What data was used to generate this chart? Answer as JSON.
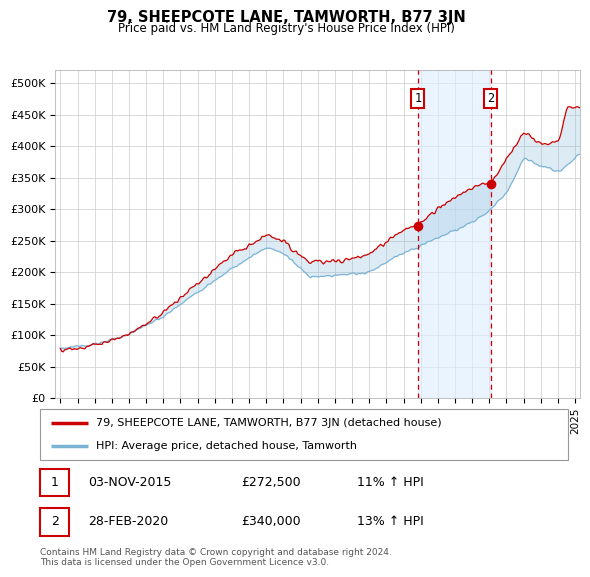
{
  "title": "79, SHEEPCOTE LANE, TAMWORTH, B77 3JN",
  "subtitle": "Price paid vs. HM Land Registry's House Price Index (HPI)",
  "legend_line1": "79, SHEEPCOTE LANE, TAMWORTH, B77 3JN (detached house)",
  "legend_line2": "HPI: Average price, detached house, Tamworth",
  "footnote": "Contains HM Land Registry data © Crown copyright and database right 2024.\nThis data is licensed under the Open Government Licence v3.0.",
  "sale1_date": "03-NOV-2015",
  "sale1_price": "£272,500",
  "sale1_hpi": "11% ↑ HPI",
  "sale2_date": "28-FEB-2020",
  "sale2_price": "£340,000",
  "sale2_hpi": "13% ↑ HPI",
  "red_color": "#cc0000",
  "blue_color": "#7ab3d4",
  "shade_color": "#cce0f0",
  "grid_color": "#cccccc",
  "bg_color": "#ffffff",
  "ylim": [
    0,
    520000
  ],
  "yticks": [
    0,
    50000,
    100000,
    150000,
    200000,
    250000,
    300000,
    350000,
    400000,
    450000,
    500000
  ],
  "ytick_labels": [
    "£0",
    "£50K",
    "£100K",
    "£150K",
    "£200K",
    "£250K",
    "£300K",
    "£350K",
    "£400K",
    "£450K",
    "£500K"
  ],
  "sale1_x": 2015.833,
  "sale1_y": 272500,
  "sale2_x": 2020.083,
  "sale2_y": 340000,
  "xlim_left": 1994.7,
  "xlim_right": 2025.3
}
